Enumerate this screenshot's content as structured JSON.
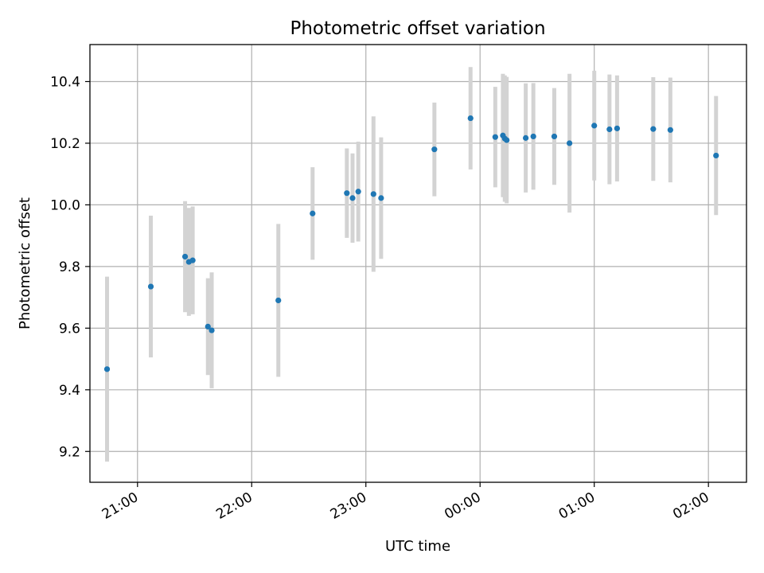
{
  "chart_data": {
    "type": "scatter",
    "title": "Photometric offset variation",
    "xlabel": "UTC time",
    "ylabel": "Photometric offset",
    "x_tick_labels": [
      "21:00",
      "22:00",
      "23:00",
      "00:00",
      "01:00",
      "02:00"
    ],
    "y_tick_labels": [
      "9.2",
      "9.4",
      "9.6",
      "9.8",
      "10.0",
      "10.2",
      "10.4"
    ],
    "y_ticks": [
      9.2,
      9.4,
      9.6,
      9.8,
      10.0,
      10.2,
      10.4
    ],
    "x_ticks": [
      "21:00",
      "22:00",
      "23:00",
      "00:00",
      "01:00",
      "02:00"
    ],
    "xlim": [
      "20:35",
      "02:20"
    ],
    "ylim": [
      9.1,
      10.52
    ],
    "grid": true,
    "colors": {
      "point": "#1f77b4",
      "errorbar": "#d3d3d3",
      "grid": "#b0b0b0"
    },
    "series": [
      {
        "points": [
          {
            "x": "20:44",
            "y": 9.467,
            "yerr": 0.3
          },
          {
            "x": "21:07",
            "y": 9.735,
            "yerr": 0.23
          },
          {
            "x": "21:25",
            "y": 9.832,
            "yerr": 0.18
          },
          {
            "x": "21:27",
            "y": 9.815,
            "yerr": 0.175
          },
          {
            "x": "21:29",
            "y": 9.82,
            "yerr": 0.175
          },
          {
            "x": "21:37",
            "y": 9.605,
            "yerr": 0.157
          },
          {
            "x": "21:39",
            "y": 9.593,
            "yerr": 0.188
          },
          {
            "x": "22:14",
            "y": 9.69,
            "yerr": 0.248
          },
          {
            "x": "22:32",
            "y": 9.972,
            "yerr": 0.15
          },
          {
            "x": "22:50",
            "y": 10.038,
            "yerr": 0.145
          },
          {
            "x": "22:53",
            "y": 10.022,
            "yerr": 0.145
          },
          {
            "x": "22:56",
            "y": 10.043,
            "yerr": 0.162
          },
          {
            "x": "23:04",
            "y": 10.035,
            "yerr": 0.252
          },
          {
            "x": "23:08",
            "y": 10.022,
            "yerr": 0.197
          },
          {
            "x": "23:36",
            "y": 10.18,
            "yerr": 0.152
          },
          {
            "x": "23:55",
            "y": 10.281,
            "yerr": 0.166
          },
          {
            "x": "00:08",
            "y": 10.22,
            "yerr": 0.163
          },
          {
            "x": "00:12",
            "y": 10.225,
            "yerr": 0.2
          },
          {
            "x": "00:13",
            "y": 10.215,
            "yerr": 0.205
          },
          {
            "x": "00:14",
            "y": 10.21,
            "yerr": 0.205
          },
          {
            "x": "00:24",
            "y": 10.217,
            "yerr": 0.177
          },
          {
            "x": "00:28",
            "y": 10.222,
            "yerr": 0.173
          },
          {
            "x": "00:39",
            "y": 10.222,
            "yerr": 0.157
          },
          {
            "x": "00:47",
            "y": 10.2,
            "yerr": 0.225
          },
          {
            "x": "01:00",
            "y": 10.257,
            "yerr": 0.178
          },
          {
            "x": "01:08",
            "y": 10.245,
            "yerr": 0.178
          },
          {
            "x": "01:12",
            "y": 10.248,
            "yerr": 0.172
          },
          {
            "x": "01:31",
            "y": 10.246,
            "yerr": 0.168
          },
          {
            "x": "01:40",
            "y": 10.243,
            "yerr": 0.17
          },
          {
            "x": "02:04",
            "y": 10.16,
            "yerr": 0.193
          }
        ]
      }
    ]
  }
}
